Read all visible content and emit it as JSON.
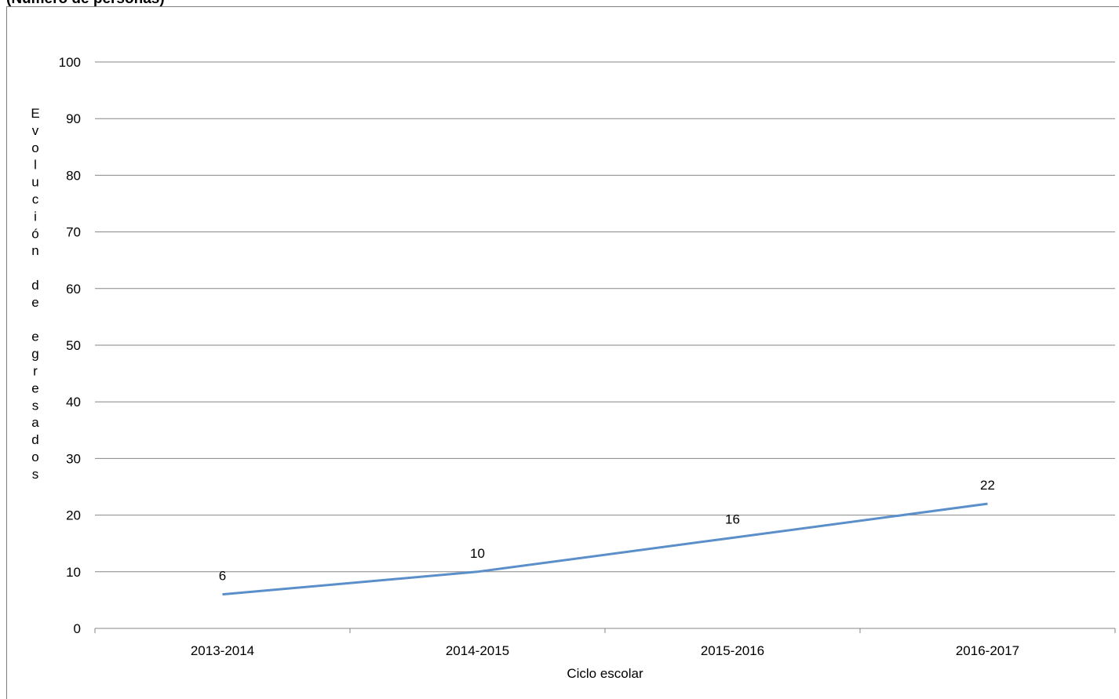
{
  "chart_data": {
    "type": "line",
    "title": "(Número de personas)",
    "xlabel": "Ciclo escolar",
    "ylabel": "Evolución de egresados",
    "categories": [
      "2013-2014",
      "2014-2015",
      "2015-2016",
      "2016-2017"
    ],
    "series": [
      {
        "values": [
          6,
          10,
          16,
          22
        ],
        "color": "#5b8fc9"
      }
    ],
    "ylim": [
      0,
      100
    ],
    "yticks": [
      0,
      10,
      20,
      30,
      40,
      50,
      60,
      70,
      80,
      90,
      100
    ],
    "grid": true,
    "data_labels": true
  }
}
